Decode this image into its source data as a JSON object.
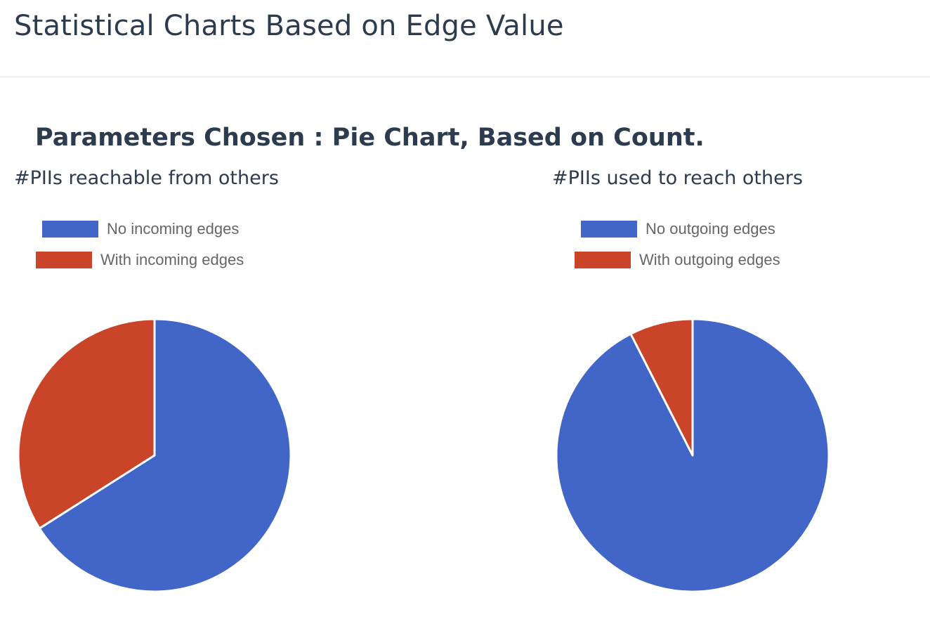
{
  "page": {
    "title": "Statistical Charts Based on Edge Value",
    "parameters_heading": "Parameters Chosen : Pie Chart, Based on Count."
  },
  "colors": {
    "blue": "#4166c8",
    "red": "#c94428",
    "slice_border": "#ffffff"
  },
  "chart_data": [
    {
      "type": "pie",
      "title": "#PIIs reachable from others",
      "legend": "top",
      "start_angle_deg": 0,
      "direction": "clockwise",
      "slices": [
        {
          "label": "No incoming edges",
          "value": 0.66,
          "color": "#4166c8"
        },
        {
          "label": "With incoming edges",
          "value": 0.34,
          "color": "#c94428"
        }
      ]
    },
    {
      "type": "pie",
      "title": "#PIIs used to reach others",
      "legend": "top",
      "start_angle_deg": 0,
      "direction": "clockwise",
      "slices": [
        {
          "label": "No outgoing edges",
          "value": 0.925,
          "color": "#4166c8"
        },
        {
          "label": "With outgoing edges",
          "value": 0.075,
          "color": "#c94428"
        }
      ]
    }
  ]
}
